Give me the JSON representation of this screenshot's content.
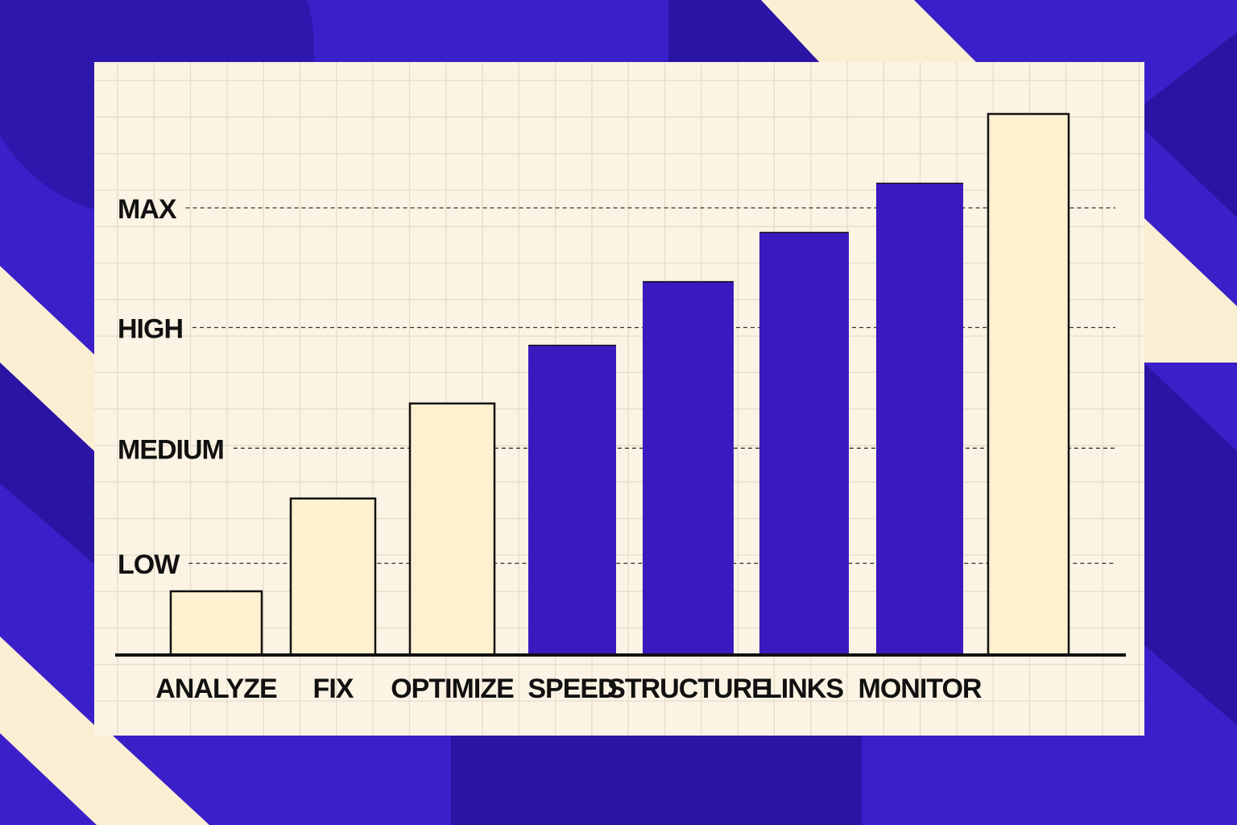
{
  "colors": {
    "background": "#3b1fc8",
    "background_dark": "#2b14a3",
    "stripe": "#fbefd3",
    "paper": "#fbf4e4",
    "grid": "#e4dccb",
    "bar_blue": "#3a1abf",
    "bar_cream": "#fff1d0",
    "ink": "#111111"
  },
  "chart_data": {
    "type": "bar",
    "title": "",
    "xlabel": "",
    "ylabel": "",
    "categories": [
      "ANALYZE",
      "FIX",
      "OPTIMIZE",
      "SPEED",
      "STRUCTURE",
      "LINKS",
      "MONITOR",
      ""
    ],
    "values": [
      0.57,
      1.4,
      2.25,
      2.77,
      3.34,
      3.78,
      4.22,
      4.84
    ],
    "bar_styles": [
      "cream",
      "cream",
      "cream",
      "blue",
      "blue",
      "blue",
      "blue",
      "cream"
    ],
    "levels": [
      {
        "label": "LOW",
        "value": 0.82
      },
      {
        "label": "MEDIUM",
        "value": 1.85
      },
      {
        "label": "HIGH",
        "value": 2.93
      },
      {
        "label": "MAX",
        "value": 4.0
      }
    ],
    "ylim": [
      0,
      5
    ],
    "grid": true,
    "legend": "none"
  }
}
